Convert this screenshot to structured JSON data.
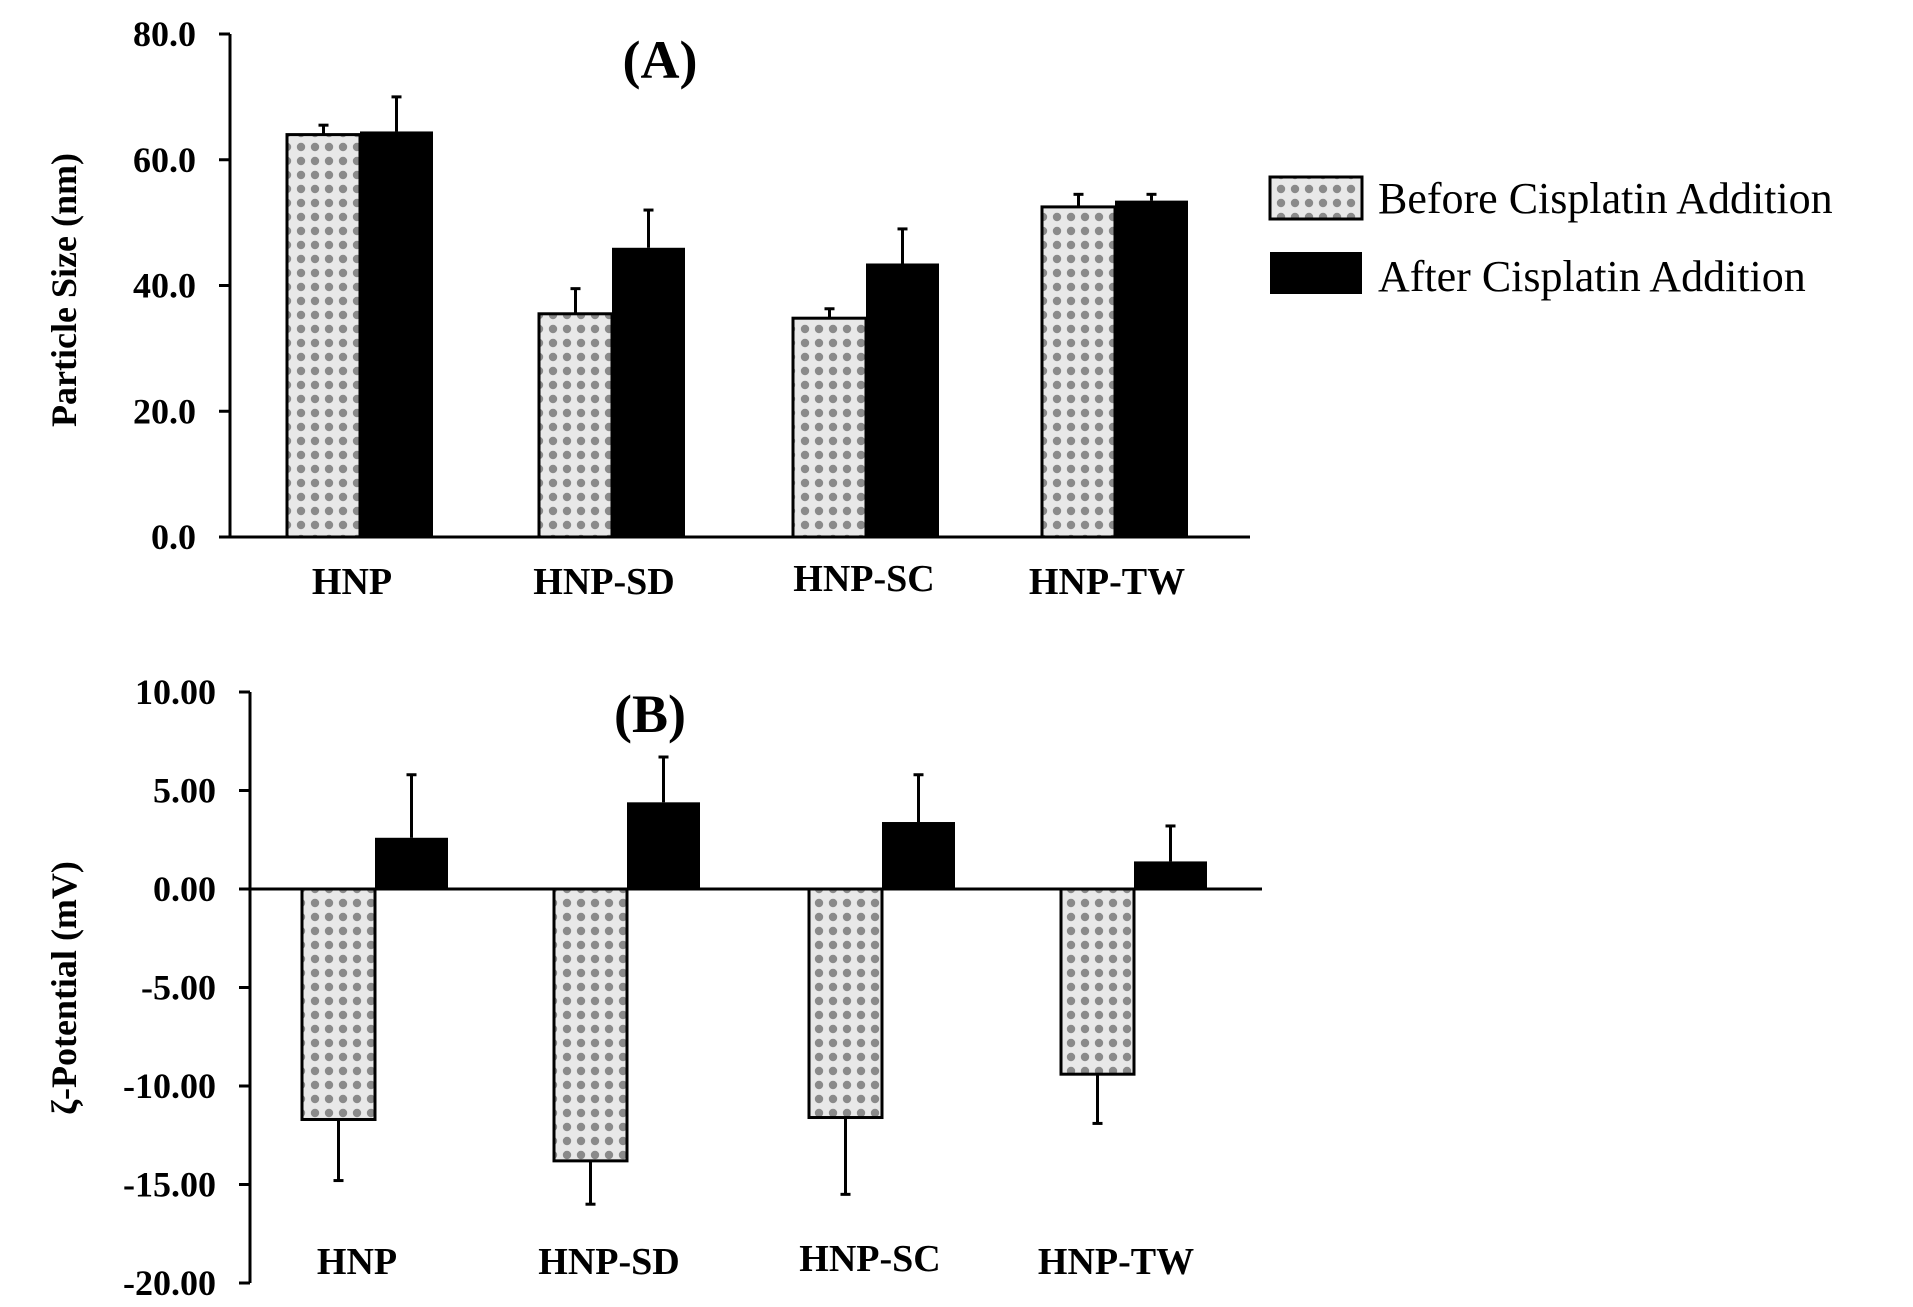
{
  "colors": {
    "before_fill_base": "#e8e8e8",
    "before_dots": "#8a8a8a",
    "after_fill": "#000000",
    "axis": "#000000"
  },
  "legend": {
    "before_label": "Before Cisplatin Addition",
    "after_label": "After Cisplatin Addition"
  },
  "chart_data": [
    {
      "type": "bar",
      "title": "(A)",
      "xlabel": "",
      "ylabel": "Particle Size (nm)",
      "ylim": [
        0,
        80
      ],
      "yticks": [
        "0.0",
        "20.0",
        "40.0",
        "60.0",
        "80.0"
      ],
      "categories": [
        "HNP",
        "HNP-SD",
        "HNP-SC",
        "HNP-TW"
      ],
      "series": [
        {
          "name": "Before Cisplatin Addition",
          "values": [
            64.0,
            35.5,
            34.8,
            52.5
          ],
          "errors": [
            1.5,
            4.0,
            1.5,
            2.0
          ]
        },
        {
          "name": "After Cisplatin Addition",
          "values": [
            64.5,
            46.0,
            43.5,
            53.5
          ],
          "errors": [
            5.5,
            6.0,
            5.5,
            1.0
          ]
        }
      ]
    },
    {
      "type": "bar",
      "title": "(B)",
      "xlabel": "",
      "ylabel": "ζ-Potential (mV)",
      "ylim": [
        -20,
        10
      ],
      "yticks": [
        "-20.00",
        "-15.00",
        "-10.00",
        "-5.00",
        "0.00",
        "5.00",
        "10.00"
      ],
      "categories": [
        "HNP",
        "HNP-SD",
        "HNP-SC",
        "HNP-TW"
      ],
      "series": [
        {
          "name": "Before Cisplatin Addition",
          "values": [
            -11.7,
            -13.8,
            -11.6,
            -9.4
          ],
          "errors": [
            3.1,
            2.2,
            3.9,
            2.5
          ]
        },
        {
          "name": "After Cisplatin Addition",
          "values": [
            2.6,
            4.4,
            3.4,
            1.4
          ],
          "errors": [
            3.2,
            2.3,
            2.4,
            1.8
          ]
        }
      ]
    }
  ]
}
